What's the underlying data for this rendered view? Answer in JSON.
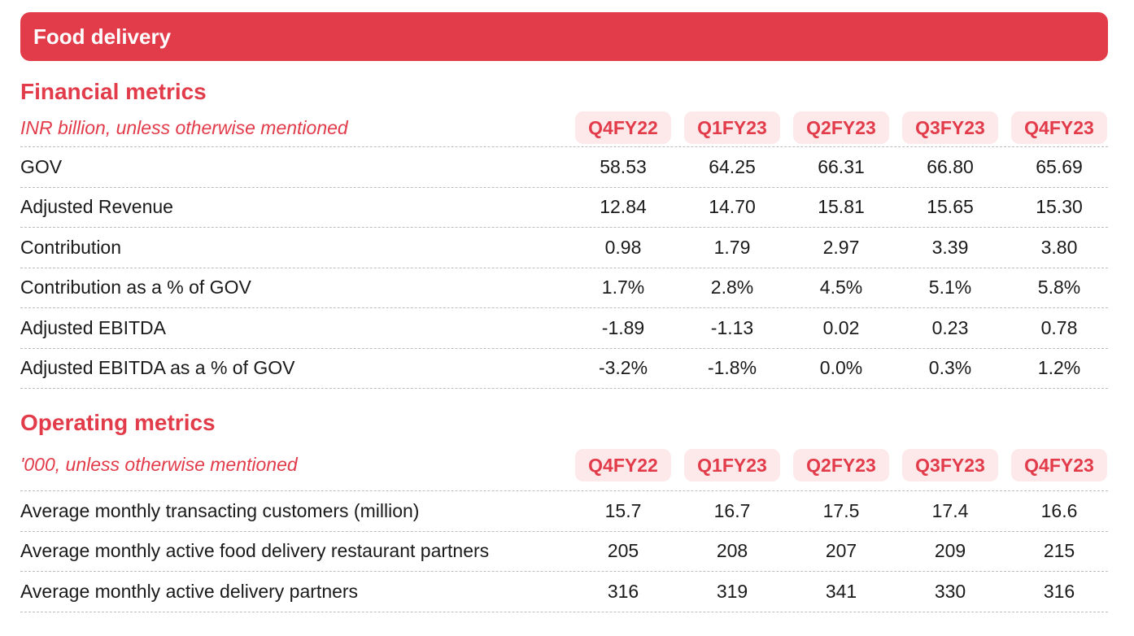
{
  "banner": {
    "title": "Food delivery"
  },
  "financial": {
    "title": "Financial metrics",
    "subtitle": "INR billion, unless otherwise mentioned",
    "columns": [
      "Q4FY22",
      "Q1FY23",
      "Q2FY23",
      "Q3FY23",
      "Q4FY23"
    ],
    "rows": [
      {
        "label": "GOV",
        "values": [
          "58.53",
          "64.25",
          "66.31",
          "66.80",
          "65.69"
        ]
      },
      {
        "label": "Adjusted Revenue",
        "values": [
          "12.84",
          "14.70",
          "15.81",
          "15.65",
          "15.30"
        ]
      },
      {
        "label": "Contribution",
        "values": [
          "0.98",
          "1.79",
          "2.97",
          "3.39",
          "3.80"
        ]
      },
      {
        "label": "Contribution as a % of GOV",
        "values": [
          "1.7%",
          "2.8%",
          "4.5%",
          "5.1%",
          "5.8%"
        ]
      },
      {
        "label": "Adjusted EBITDA",
        "values": [
          "-1.89",
          "-1.13",
          "0.02",
          "0.23",
          "0.78"
        ]
      },
      {
        "label": "Adjusted EBITDA as a % of GOV",
        "values": [
          "-3.2%",
          "-1.8%",
          "0.0%",
          "0.3%",
          "1.2%"
        ]
      }
    ]
  },
  "operating": {
    "title": "Operating metrics",
    "subtitle": "'000, unless otherwise mentioned",
    "columns": [
      "Q4FY22",
      "Q1FY23",
      "Q2FY23",
      "Q3FY23",
      "Q4FY23"
    ],
    "rows": [
      {
        "label": "Average monthly transacting customers (million)",
        "values": [
          "15.7",
          "16.7",
          "17.5",
          "17.4",
          "16.6"
        ]
      },
      {
        "label": "Average monthly active food delivery restaurant partners",
        "values": [
          "205",
          "208",
          "207",
          "209",
          "215"
        ]
      },
      {
        "label": "Average monthly active delivery partners",
        "values": [
          "316",
          "319",
          "341",
          "330",
          "316"
        ]
      }
    ]
  },
  "colors": {
    "accent": "#e23b4a",
    "pill_background": "#fde8ea",
    "divider": "#bdbdbd"
  }
}
